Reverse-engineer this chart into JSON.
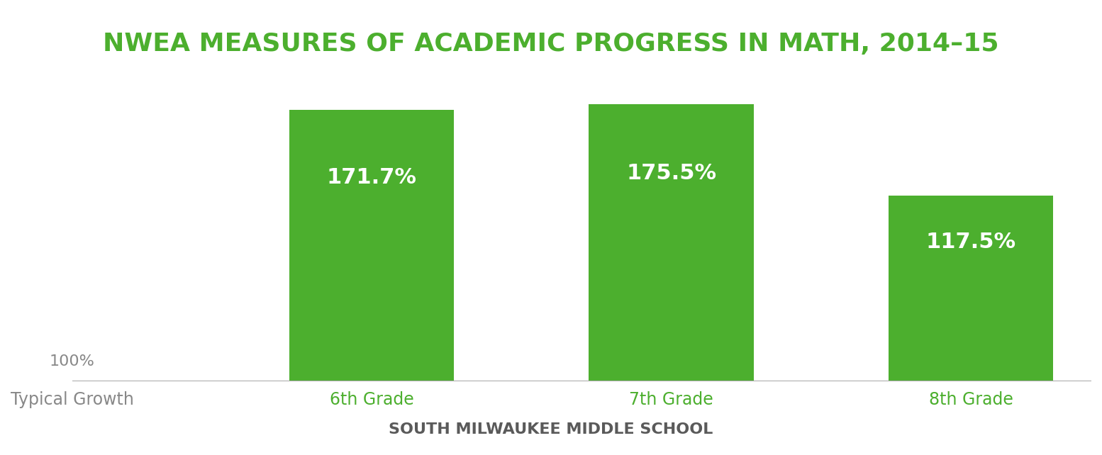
{
  "title": "NWEA MEASURES OF ACADEMIC PROGRESS IN MATH, 2014–15",
  "subtitle": "SOUTH MILWAUKEE MIDDLE SCHOOL",
  "categories": [
    "Typical Growth",
    "6th Grade",
    "7th Grade",
    "8th Grade"
  ],
  "values": [
    null,
    171.7,
    175.5,
    117.5
  ],
  "bar_labels": [
    "",
    "171.7%",
    "175.5%",
    "117.5%"
  ],
  "typical_growth_label": "100%",
  "bar_color": "#4caf2e",
  "title_color": "#4caf2e",
  "subtitle_color": "#5a5a5a",
  "label_color_inside": "#ffffff",
  "typical_growth_text_color": "#888888",
  "xtick_color": "#4caf2e",
  "background_color": "#ffffff",
  "ylim": [
    0,
    200
  ],
  "bar_width": 0.55,
  "title_fontsize": 26,
  "subtitle_fontsize": 16,
  "bar_label_fontsize": 22,
  "xtick_fontsize": 17,
  "typical_label_fontsize": 16
}
